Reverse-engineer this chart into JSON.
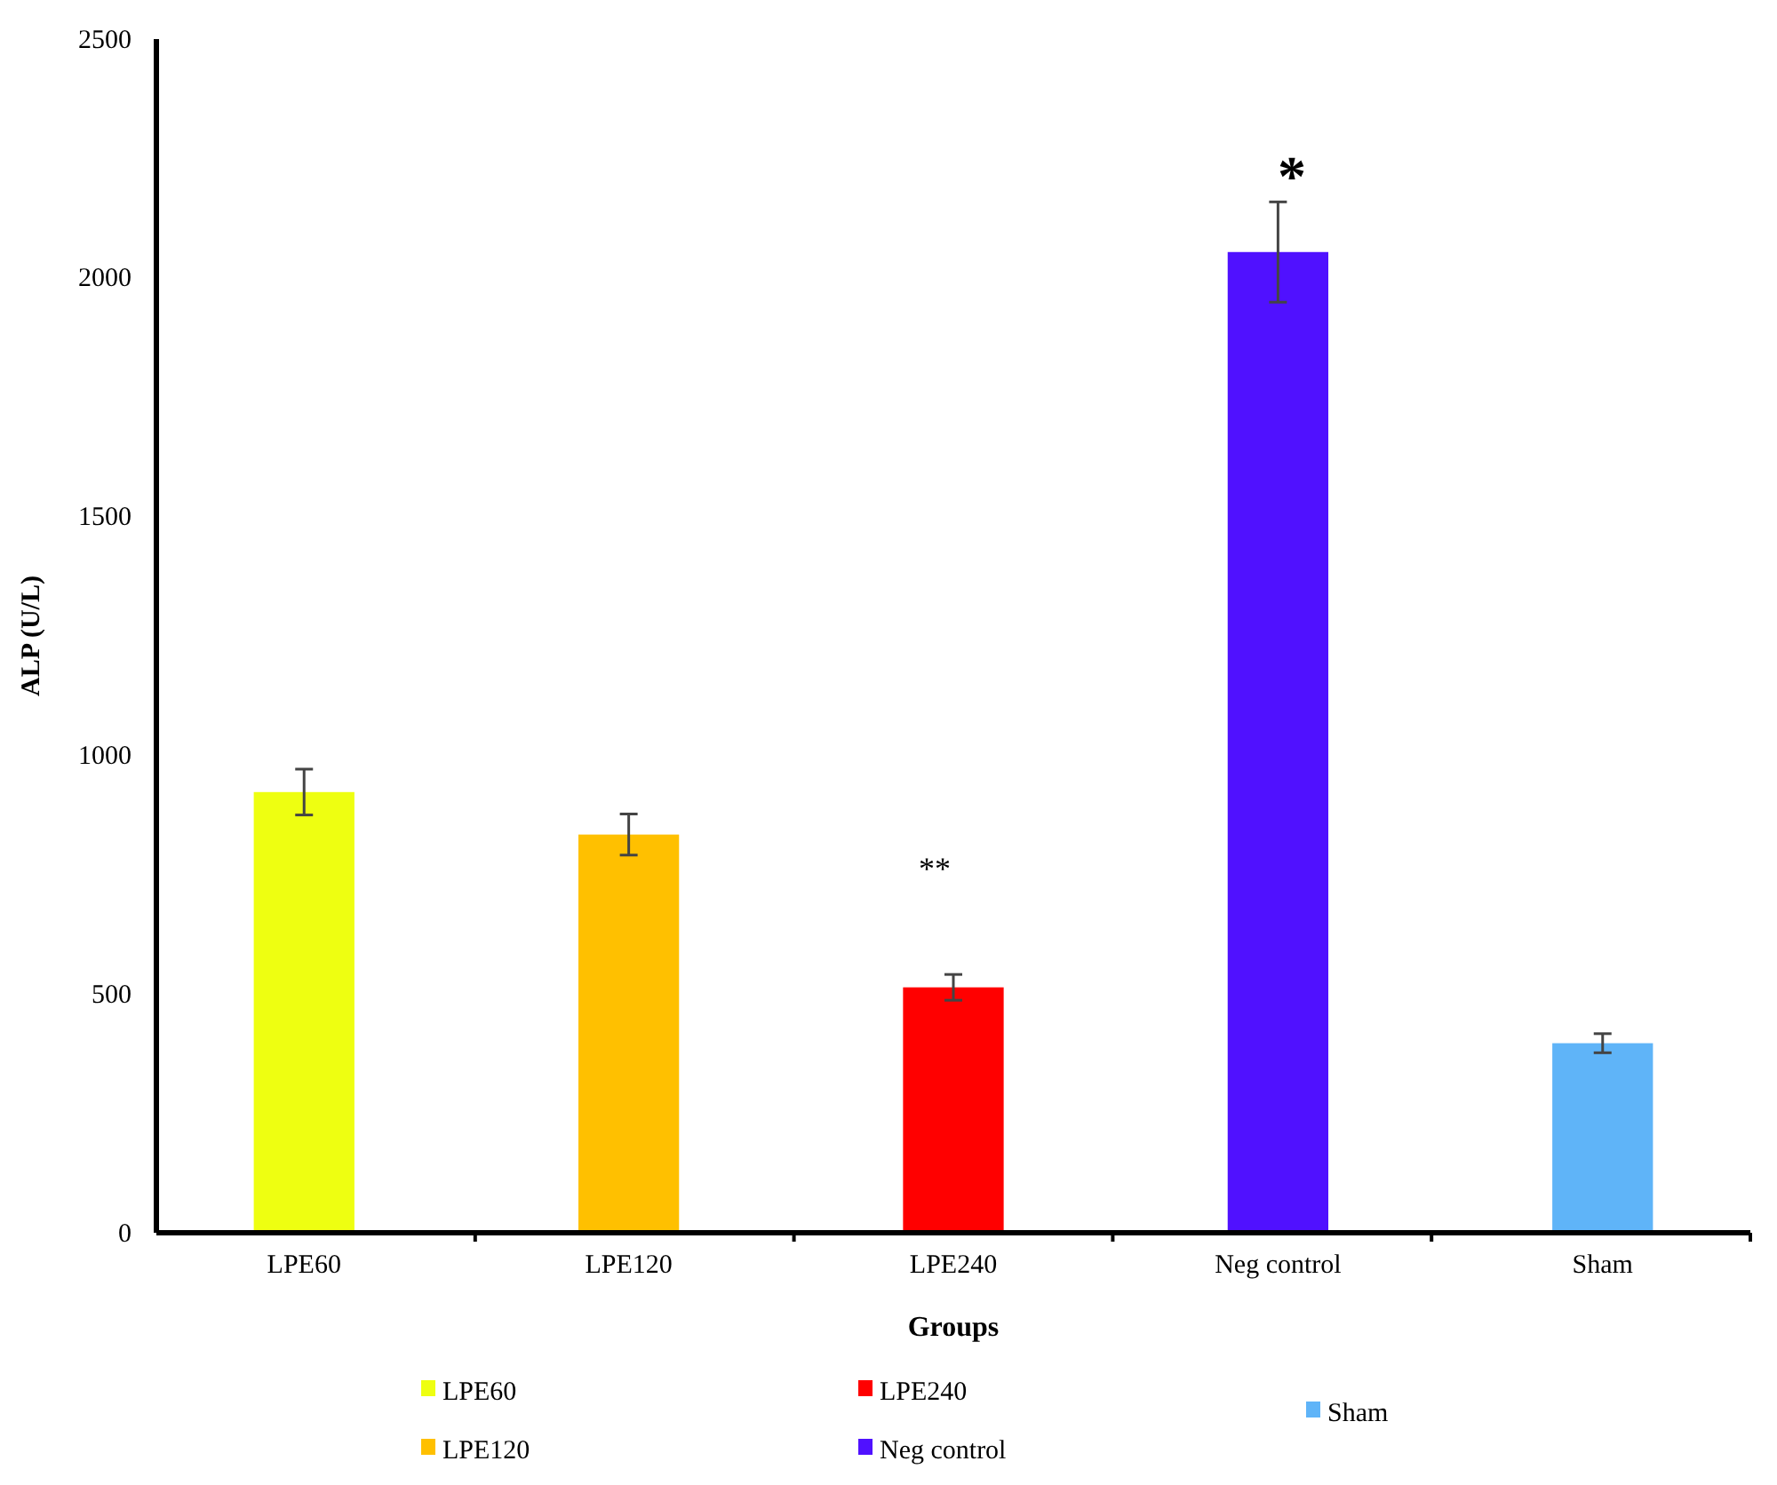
{
  "chart_data": {
    "type": "bar",
    "xlabel": "Groups",
    "ylabel": "ALP (U/L)",
    "categories": [
      "LPE60",
      "LPE120",
      "LPE240",
      "Neg control",
      "Sham"
    ],
    "series": [
      {
        "name": "LPE60",
        "color": "#eeff11",
        "values": [
          923,
          null,
          null,
          null,
          null
        ],
        "errors": [
          48,
          null,
          null,
          null,
          null
        ]
      },
      {
        "name": "LPE120",
        "color": "#ffc000",
        "values": [
          null,
          834,
          null,
          null,
          null
        ],
        "errors": [
          null,
          43,
          null,
          null,
          null
        ]
      },
      {
        "name": "LPE240",
        "color": "#ff0000",
        "values": [
          null,
          null,
          514,
          null,
          null
        ],
        "errors": [
          null,
          null,
          27,
          null,
          null
        ]
      },
      {
        "name": "Neg control",
        "color": "#5011ff",
        "values": [
          null,
          null,
          null,
          2054,
          null
        ],
        "errors": [
          null,
          null,
          null,
          105,
          null
        ]
      },
      {
        "name": "Sham",
        "color": "#5fb4f8",
        "values": [
          null,
          null,
          null,
          null,
          397
        ],
        "errors": [
          null,
          null,
          null,
          null,
          20
        ]
      }
    ],
    "ylim": [
      0,
      2500
    ],
    "yticks": [
      0,
      500,
      1000,
      1500,
      2000,
      2500
    ],
    "grid": false,
    "legend": "bottom",
    "annotations": [
      "**",
      "*"
    ]
  }
}
